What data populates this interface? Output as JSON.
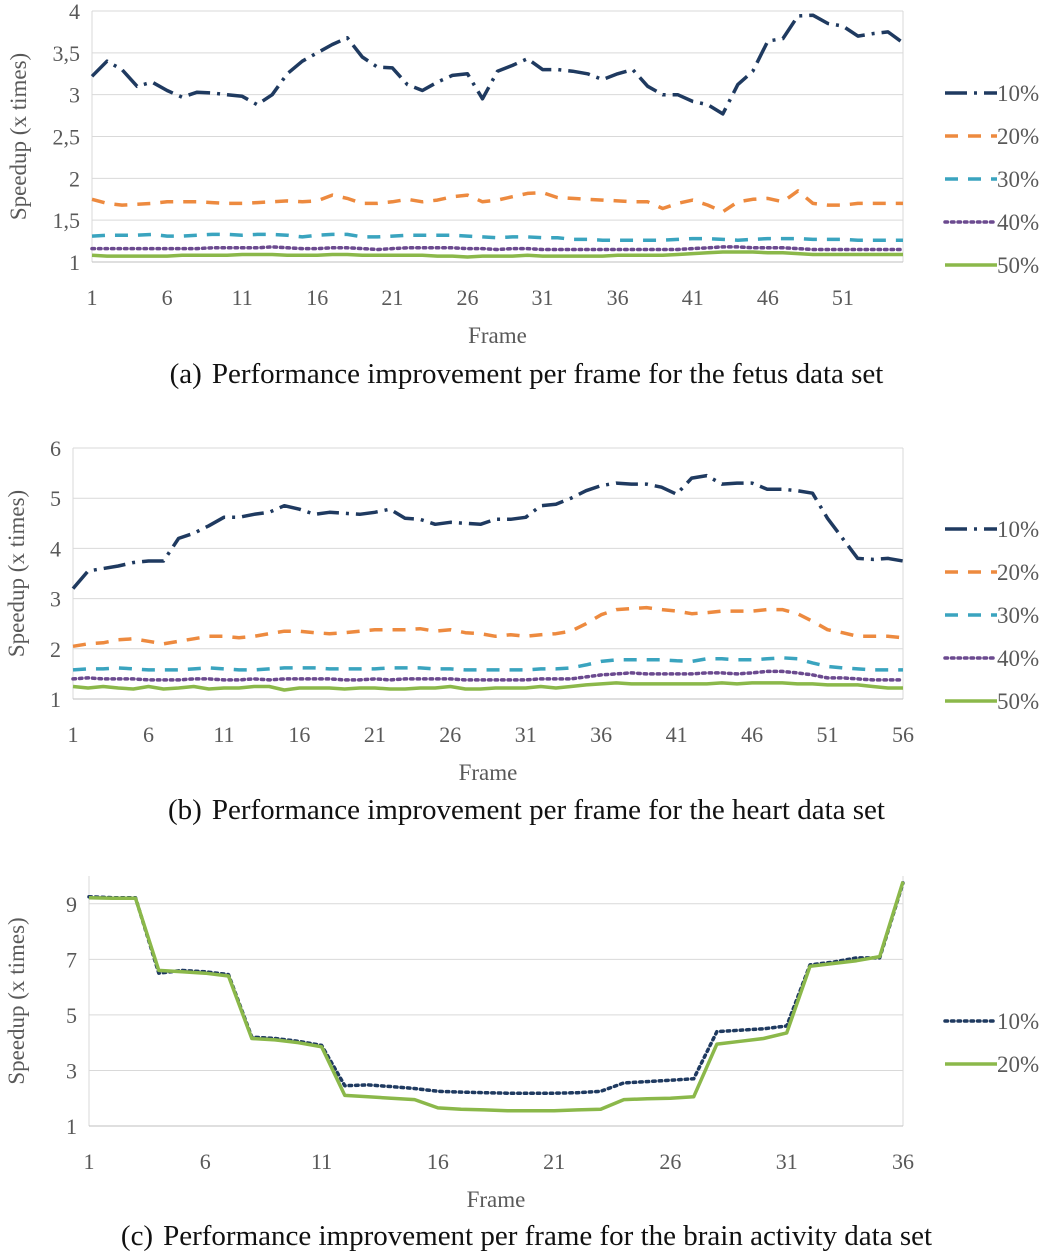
{
  "chart_data": [
    {
      "type": "line",
      "title": "",
      "caption_tag": "(a)",
      "caption": "Performance improvement per frame for the fetus data set",
      "xlabel": "Frame",
      "ylabel": "Speedup (x times)",
      "xlim": [
        1,
        55
      ],
      "ylim": [
        1,
        4
      ],
      "xticks": [
        1,
        6,
        11,
        16,
        21,
        26,
        31,
        36,
        41,
        46,
        51
      ],
      "yticks": [
        1,
        1.5,
        2,
        2.5,
        3,
        3.5,
        4
      ],
      "ytick_labels": [
        "1",
        "1,5",
        "2",
        "2,5",
        "3",
        "3,5",
        "4"
      ],
      "grid": "horizontal",
      "legend_position": "right",
      "series": [
        {
          "name": "10%",
          "color": "#1f3a60",
          "dash": "longdash-dot",
          "values": [
            3.22,
            3.4,
            3.3,
            3.1,
            3.15,
            3.05,
            2.97,
            3.03,
            3.02,
            3.0,
            2.98,
            2.88,
            3.0,
            3.25,
            3.4,
            3.5,
            3.6,
            3.68,
            3.45,
            3.33,
            3.32,
            3.12,
            3.05,
            3.15,
            3.23,
            3.25,
            2.95,
            3.28,
            3.35,
            3.43,
            3.3,
            3.3,
            3.28,
            3.25,
            3.18,
            3.25,
            3.3,
            3.1,
            3.0,
            3.0,
            2.92,
            2.88,
            2.77,
            3.12,
            3.28,
            3.64,
            3.67,
            3.94,
            3.95,
            3.85,
            3.82,
            3.7,
            3.73,
            3.75,
            3.62
          ]
        },
        {
          "name": "20%",
          "color": "#ed8a3f",
          "dash": "dashed",
          "values": [
            1.75,
            1.7,
            1.68,
            1.69,
            1.7,
            1.72,
            1.72,
            1.72,
            1.71,
            1.7,
            1.7,
            1.71,
            1.72,
            1.73,
            1.72,
            1.73,
            1.8,
            1.76,
            1.7,
            1.7,
            1.72,
            1.75,
            1.72,
            1.74,
            1.78,
            1.8,
            1.72,
            1.74,
            1.78,
            1.82,
            1.83,
            1.77,
            1.76,
            1.75,
            1.74,
            1.73,
            1.72,
            1.72,
            1.64,
            1.7,
            1.74,
            1.68,
            1.6,
            1.72,
            1.75,
            1.76,
            1.72,
            1.85,
            1.7,
            1.68,
            1.68,
            1.7,
            1.7,
            1.7,
            1.7
          ]
        },
        {
          "name": "30%",
          "color": "#3aa4bf",
          "dash": "dashed",
          "values": [
            1.31,
            1.32,
            1.32,
            1.32,
            1.33,
            1.31,
            1.31,
            1.32,
            1.33,
            1.33,
            1.32,
            1.33,
            1.33,
            1.32,
            1.3,
            1.32,
            1.33,
            1.33,
            1.3,
            1.3,
            1.31,
            1.32,
            1.32,
            1.32,
            1.32,
            1.31,
            1.3,
            1.29,
            1.3,
            1.3,
            1.29,
            1.29,
            1.27,
            1.27,
            1.26,
            1.26,
            1.26,
            1.26,
            1.26,
            1.27,
            1.28,
            1.28,
            1.27,
            1.26,
            1.27,
            1.28,
            1.28,
            1.28,
            1.27,
            1.27,
            1.27,
            1.26,
            1.26,
            1.26,
            1.26
          ]
        },
        {
          "name": "40%",
          "color": "#6b4a8f",
          "dash": "dotted",
          "values": [
            1.16,
            1.16,
            1.16,
            1.16,
            1.16,
            1.16,
            1.16,
            1.16,
            1.17,
            1.17,
            1.17,
            1.17,
            1.18,
            1.17,
            1.16,
            1.16,
            1.17,
            1.17,
            1.16,
            1.15,
            1.16,
            1.17,
            1.17,
            1.17,
            1.17,
            1.16,
            1.16,
            1.15,
            1.16,
            1.16,
            1.15,
            1.15,
            1.15,
            1.15,
            1.15,
            1.15,
            1.15,
            1.15,
            1.15,
            1.15,
            1.16,
            1.17,
            1.18,
            1.18,
            1.17,
            1.17,
            1.17,
            1.16,
            1.15,
            1.15,
            1.15,
            1.15,
            1.15,
            1.15,
            1.15
          ]
        },
        {
          "name": "50%",
          "color": "#8bb84a",
          "dash": "solid",
          "values": [
            1.08,
            1.07,
            1.07,
            1.07,
            1.07,
            1.07,
            1.08,
            1.08,
            1.08,
            1.08,
            1.09,
            1.09,
            1.09,
            1.08,
            1.08,
            1.08,
            1.09,
            1.09,
            1.08,
            1.08,
            1.08,
            1.08,
            1.08,
            1.07,
            1.07,
            1.06,
            1.07,
            1.07,
            1.07,
            1.08,
            1.07,
            1.07,
            1.07,
            1.07,
            1.07,
            1.08,
            1.08,
            1.08,
            1.08,
            1.09,
            1.1,
            1.11,
            1.12,
            1.12,
            1.12,
            1.11,
            1.11,
            1.1,
            1.09,
            1.09,
            1.09,
            1.09,
            1.09,
            1.09,
            1.09
          ]
        }
      ]
    },
    {
      "type": "line",
      "title": "",
      "caption_tag": "(b)",
      "caption": "Performance improvement per frame for the heart data set",
      "xlabel": "Frame",
      "ylabel": "Speedup (x times)",
      "xlim": [
        1,
        56
      ],
      "ylim": [
        1,
        6
      ],
      "xticks": [
        1,
        6,
        11,
        16,
        21,
        26,
        31,
        36,
        41,
        46,
        51,
        56
      ],
      "yticks": [
        1,
        2,
        3,
        4,
        5,
        6
      ],
      "ytick_labels": [
        "1",
        "2",
        "3",
        "4",
        "5",
        "6"
      ],
      "grid": "horizontal",
      "legend_position": "right",
      "series": [
        {
          "name": "10%",
          "color": "#1f3a60",
          "dash": "longdash-dot",
          "values": [
            3.2,
            3.55,
            3.6,
            3.65,
            3.72,
            3.75,
            3.75,
            4.2,
            4.3,
            4.45,
            4.62,
            4.62,
            4.68,
            4.72,
            4.85,
            4.78,
            4.68,
            4.72,
            4.7,
            4.68,
            4.72,
            4.78,
            4.6,
            4.58,
            4.48,
            4.52,
            4.5,
            4.48,
            4.58,
            4.58,
            4.62,
            4.85,
            4.88,
            5.0,
            5.15,
            5.25,
            5.3,
            5.28,
            5.28,
            5.22,
            5.08,
            5.4,
            5.45,
            5.28,
            5.3,
            5.3,
            5.18,
            5.18,
            5.15,
            5.1,
            4.6,
            4.2,
            3.8,
            3.78,
            3.8,
            3.75
          ]
        },
        {
          "name": "20%",
          "color": "#ed8a3f",
          "dash": "dashed",
          "values": [
            2.05,
            2.1,
            2.12,
            2.18,
            2.2,
            2.15,
            2.1,
            2.15,
            2.2,
            2.25,
            2.25,
            2.22,
            2.25,
            2.3,
            2.35,
            2.35,
            2.32,
            2.3,
            2.32,
            2.35,
            2.38,
            2.38,
            2.38,
            2.4,
            2.35,
            2.38,
            2.32,
            2.3,
            2.25,
            2.28,
            2.25,
            2.28,
            2.3,
            2.35,
            2.5,
            2.68,
            2.78,
            2.8,
            2.82,
            2.78,
            2.75,
            2.7,
            2.72,
            2.75,
            2.75,
            2.75,
            2.78,
            2.78,
            2.7,
            2.55,
            2.38,
            2.32,
            2.25,
            2.25,
            2.25,
            2.22
          ]
        },
        {
          "name": "30%",
          "color": "#3aa4bf",
          "dash": "dashed",
          "values": [
            1.58,
            1.6,
            1.6,
            1.62,
            1.6,
            1.58,
            1.58,
            1.58,
            1.6,
            1.62,
            1.6,
            1.58,
            1.58,
            1.6,
            1.62,
            1.62,
            1.62,
            1.6,
            1.6,
            1.6,
            1.6,
            1.62,
            1.62,
            1.62,
            1.6,
            1.6,
            1.58,
            1.58,
            1.58,
            1.58,
            1.58,
            1.6,
            1.6,
            1.62,
            1.68,
            1.75,
            1.78,
            1.78,
            1.78,
            1.78,
            1.76,
            1.75,
            1.8,
            1.8,
            1.78,
            1.78,
            1.8,
            1.82,
            1.8,
            1.72,
            1.65,
            1.62,
            1.6,
            1.58,
            1.58,
            1.58
          ]
        },
        {
          "name": "40%",
          "color": "#6b4a8f",
          "dash": "dotted",
          "values": [
            1.4,
            1.42,
            1.4,
            1.4,
            1.4,
            1.38,
            1.38,
            1.38,
            1.4,
            1.4,
            1.38,
            1.38,
            1.4,
            1.38,
            1.4,
            1.4,
            1.4,
            1.4,
            1.38,
            1.38,
            1.4,
            1.38,
            1.4,
            1.4,
            1.4,
            1.4,
            1.38,
            1.38,
            1.38,
            1.38,
            1.38,
            1.4,
            1.4,
            1.4,
            1.44,
            1.48,
            1.5,
            1.52,
            1.5,
            1.5,
            1.5,
            1.5,
            1.52,
            1.52,
            1.5,
            1.52,
            1.55,
            1.55,
            1.52,
            1.48,
            1.42,
            1.42,
            1.4,
            1.38,
            1.38,
            1.38
          ]
        },
        {
          "name": "50%",
          "color": "#8bb84a",
          "dash": "solid",
          "values": [
            1.25,
            1.22,
            1.25,
            1.22,
            1.2,
            1.25,
            1.2,
            1.22,
            1.25,
            1.2,
            1.22,
            1.22,
            1.25,
            1.25,
            1.18,
            1.22,
            1.22,
            1.22,
            1.2,
            1.22,
            1.22,
            1.2,
            1.2,
            1.22,
            1.22,
            1.25,
            1.2,
            1.2,
            1.22,
            1.22,
            1.22,
            1.25,
            1.22,
            1.25,
            1.28,
            1.3,
            1.32,
            1.3,
            1.3,
            1.3,
            1.3,
            1.3,
            1.3,
            1.32,
            1.3,
            1.32,
            1.32,
            1.32,
            1.3,
            1.3,
            1.28,
            1.28,
            1.28,
            1.25,
            1.22,
            1.22
          ]
        }
      ]
    },
    {
      "type": "line",
      "title": "",
      "caption_tag": "(c)",
      "caption": "Performance improvement per frame for the brain activity data set",
      "xlabel": "Frame",
      "ylabel": "Speedup (x times)",
      "xlim": [
        1,
        36
      ],
      "ylim": [
        1,
        10
      ],
      "xticks": [
        1,
        6,
        11,
        16,
        21,
        26,
        31,
        36
      ],
      "yticks": [
        1,
        3,
        5,
        7,
        9
      ],
      "ytick_labels": [
        "1",
        "3",
        "5",
        "7",
        "9"
      ],
      "grid": "horizontal",
      "legend_position": "right",
      "series": [
        {
          "name": "10%",
          "color": "#1f3a60",
          "dash": "dotted",
          "values": [
            9.25,
            9.22,
            9.22,
            6.5,
            6.6,
            6.55,
            6.45,
            4.2,
            4.15,
            4.05,
            3.9,
            2.45,
            2.48,
            2.42,
            2.35,
            2.25,
            2.22,
            2.2,
            2.18,
            2.18,
            2.18,
            2.2,
            2.25,
            2.55,
            2.6,
            2.65,
            2.7,
            4.4,
            4.45,
            4.5,
            4.6,
            6.8,
            6.9,
            7.05,
            7.05,
            9.75
          ]
        },
        {
          "name": "20%",
          "color": "#8bb84a",
          "dash": "solid",
          "values": [
            9.22,
            9.2,
            9.2,
            6.6,
            6.55,
            6.5,
            6.4,
            4.15,
            4.1,
            4.0,
            3.85,
            2.1,
            2.05,
            2.0,
            1.95,
            1.65,
            1.6,
            1.58,
            1.55,
            1.55,
            1.55,
            1.58,
            1.6,
            1.95,
            1.98,
            2.0,
            2.05,
            3.95,
            4.05,
            4.15,
            4.35,
            6.75,
            6.85,
            6.95,
            7.1,
            9.8
          ]
        }
      ]
    }
  ]
}
